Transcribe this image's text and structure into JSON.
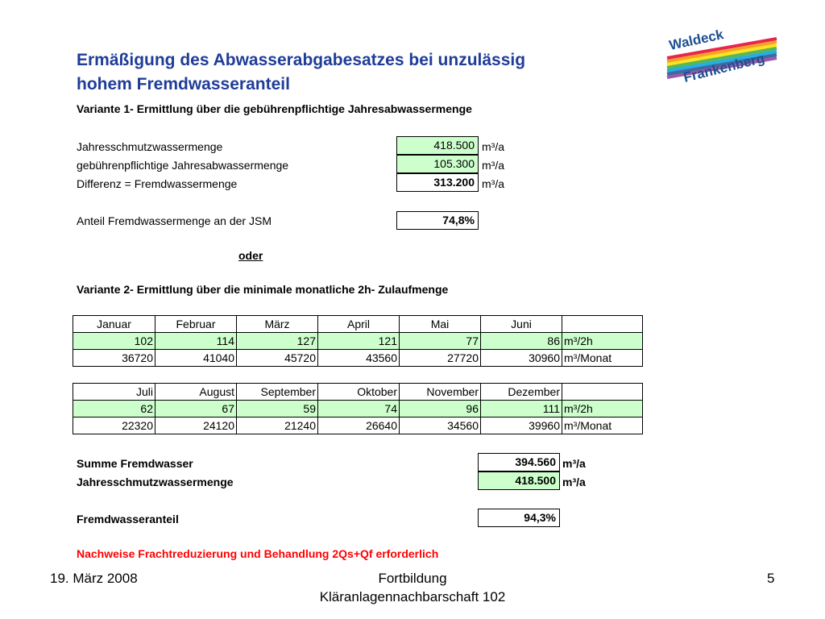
{
  "title": "Ermäßigung des Abwasserabgabesatzes bei unzulässig hohem Fremdwasseranteil",
  "variante1": {
    "heading": "Variante 1- Ermittlung über die gebührenpflichtige Jahresabwassermenge",
    "rows": [
      {
        "label": "Jahresschmutzwassermenge",
        "value": "418.500",
        "unit": "m³/a"
      },
      {
        "label": "gebührenpflichtige Jahresabwassermenge",
        "value": "105.300",
        "unit": "m³/a"
      },
      {
        "label": "Differenz = Fremdwassermenge",
        "value": "313.200",
        "unit": "m³/a"
      }
    ],
    "anteil_label": "Anteil Fremdwassermenge an der JSM",
    "anteil_value": "74,8%"
  },
  "oder": "oder",
  "variante2": {
    "heading": "Variante 2- Ermittlung über die minimale monatliche 2h- Zulaufmenge",
    "table1": {
      "months": [
        "Januar",
        "Februar",
        "März",
        "April",
        "Mai",
        "Juni"
      ],
      "row_h": [
        "102",
        "114",
        "127",
        "121",
        "77",
        "86"
      ],
      "row_month": [
        "36720",
        "41040",
        "45720",
        "43560",
        "27720",
        "30960"
      ]
    },
    "table2": {
      "months": [
        "Juli",
        "August",
        "September",
        "Oktober",
        "November",
        "Dezember"
      ],
      "row_h": [
        "62",
        "67",
        "59",
        "74",
        "96",
        "111"
      ],
      "row_month": [
        "22320",
        "24120",
        "21240",
        "26640",
        "34560",
        "39960"
      ]
    },
    "unit_h": "m³/2h",
    "unit_month": "m³/Monat"
  },
  "summary": {
    "summe_label": "Summe Fremdwasser",
    "summe_value": "394.560",
    "jsm_label": "Jahresschmutzwassermenge",
    "jsm_value": "418.500",
    "unit": "m³/a",
    "anteil_label": "Fremdwasseranteil",
    "anteil_value": "94,3%"
  },
  "note": "Nachweise Frachtreduzierung und Behandlung 2Qs+Qf erforderlich",
  "footer": {
    "date": "19. März 2008",
    "center_line1": "Fortbildung",
    "center_line2": "Kläranlagennachbarschaft 102",
    "page": "5"
  },
  "logo": {
    "line1": "Waldeck",
    "line2": "Frankenberg",
    "colors": [
      "#e4002b",
      "#f39200",
      "#ffdd00",
      "#3aaa35",
      "#009fe3",
      "#1d4f91",
      "#8e3a96"
    ],
    "text_color": "#1d4f91"
  }
}
